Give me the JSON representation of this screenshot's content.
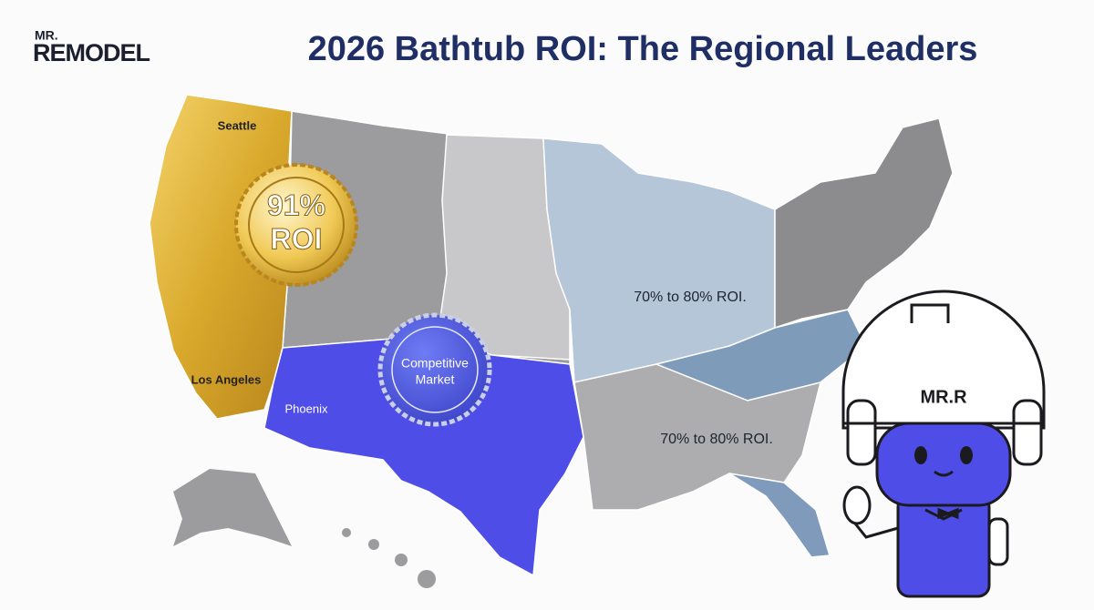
{
  "header": {
    "logo": {
      "top": "MR.",
      "main": "REMODEL"
    },
    "title": "2026 Bathtub ROI: The Regional Leaders"
  },
  "map": {
    "city_labels": [
      "Seattle",
      "Los Angeles",
      "Phoenix"
    ],
    "region_labels": [
      "70% to 80% ROI.",
      "70% to 80% ROI."
    ],
    "badges": [
      {
        "lines": [
          "91%",
          "ROI"
        ]
      },
      {
        "lines": [
          "Competitive",
          "Market"
        ]
      }
    ]
  },
  "mascot": {
    "helmet_label": "MR.R"
  }
}
